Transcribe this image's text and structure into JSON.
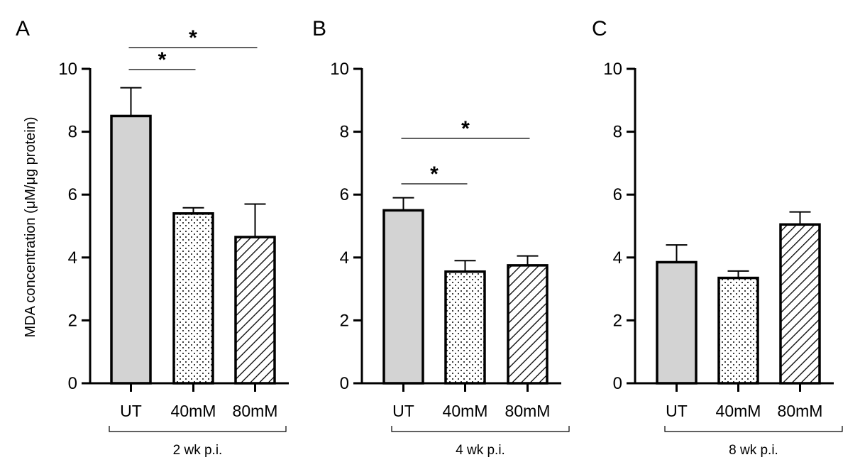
{
  "chart_data": {
    "type": "bar",
    "ylabel": "MDA concentration  (μM/μg protein)",
    "ylim": [
      0,
      10
    ],
    "yticks": [
      0,
      2,
      4,
      6,
      8,
      10
    ],
    "categories": [
      "UT",
      "40mM",
      "80mM"
    ],
    "fills": [
      "solid-gray",
      "dots",
      "diagonal-hatch"
    ],
    "colors": {
      "bar_fill": "#d3d3d3",
      "stroke": "#000000",
      "background": "#ffffff"
    },
    "panels": [
      {
        "letter": "A",
        "group_label": "2 wk p.i.",
        "values": [
          8.5,
          5.4,
          4.65
        ],
        "errors": [
          0.9,
          0.18,
          1.05
        ],
        "significance": [
          {
            "from": 0,
            "to": 1,
            "label": "*"
          },
          {
            "from": 0,
            "to": 2,
            "label": "*"
          }
        ]
      },
      {
        "letter": "B",
        "group_label": "4 wk p.i.",
        "values": [
          5.5,
          3.55,
          3.75
        ],
        "errors": [
          0.4,
          0.35,
          0.3
        ],
        "significance": [
          {
            "from": 0,
            "to": 1,
            "label": "*"
          },
          {
            "from": 0,
            "to": 2,
            "label": "*"
          }
        ]
      },
      {
        "letter": "C",
        "group_label": "8 wk p.i.",
        "values": [
          3.85,
          3.35,
          5.05
        ],
        "errors": [
          0.55,
          0.22,
          0.4
        ],
        "significance": []
      }
    ]
  }
}
